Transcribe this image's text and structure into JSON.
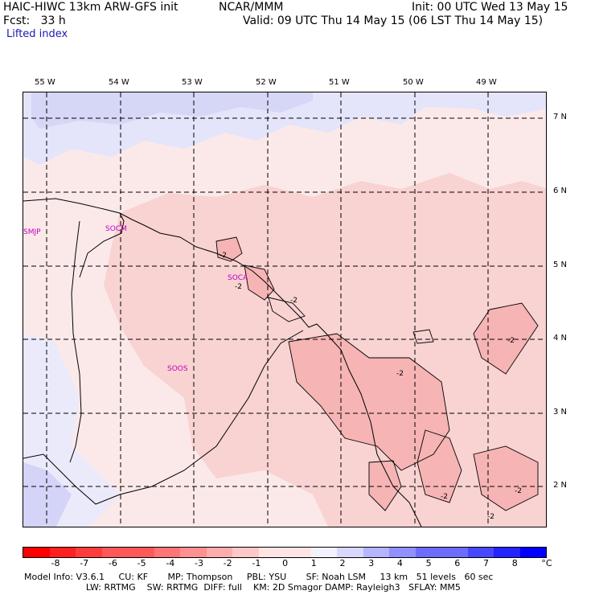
{
  "header": {
    "model": "HAIC-HIWC 13km ARW-GFS init",
    "org": "NCAR/MMM",
    "init": "Init: 00 UTC Wed 13 May 15",
    "fcst": "Fcst:   33 h",
    "valid": "Valid: 09 UTC Thu 14 May 15 (06 LST Thu 14 May 15)",
    "field": "Lifted index"
  },
  "lon_labels": [
    "55 W",
    "54 W",
    "53 W",
    "52 W",
    "51 W",
    "50 W",
    "49 W"
  ],
  "lat_labels": [
    "7 N",
    "6 N",
    "5 N",
    "4 N",
    "3 N",
    "2 N"
  ],
  "stations": [
    "SMJP",
    "SOCM",
    "SOCA",
    "SOOS"
  ],
  "contour_labels": [
    "-2",
    "-2",
    "-2",
    "-2",
    "-2",
    "-2",
    "-2",
    "-2"
  ],
  "colorbar": {
    "labels": [
      "-8",
      "-7",
      "-6",
      "-5",
      "-4",
      "-3",
      "-2",
      "-1",
      "0",
      "1",
      "2",
      "3",
      "4",
      "5",
      "6",
      "7",
      "8"
    ],
    "unit": "°C",
    "colors": [
      "#ff0000",
      "#ff2020",
      "#ff3c3c",
      "#ff5858",
      "#ff7474",
      "#ff9090",
      "#ffacac",
      "#ffc8c8",
      "#ffe4e4",
      "#f2f2ff",
      "#d8d8ff",
      "#b4b4ff",
      "#9090ff",
      "#6c6cff",
      "#4848ff",
      "#2424ff",
      "#0000ff"
    ]
  },
  "footer": {
    "line1": "Model Info: V3.6.1     CU: KF       MP: Thompson     PBL: YSU       SF: Noah LSM     13 km   51 levels   60 sec",
    "line2": "                      LW: RRTMG    SW: RRTMG  DIFF: full    KM: 2D Smagor DAMP: Rayleigh3   SFLAY: MM5"
  }
}
